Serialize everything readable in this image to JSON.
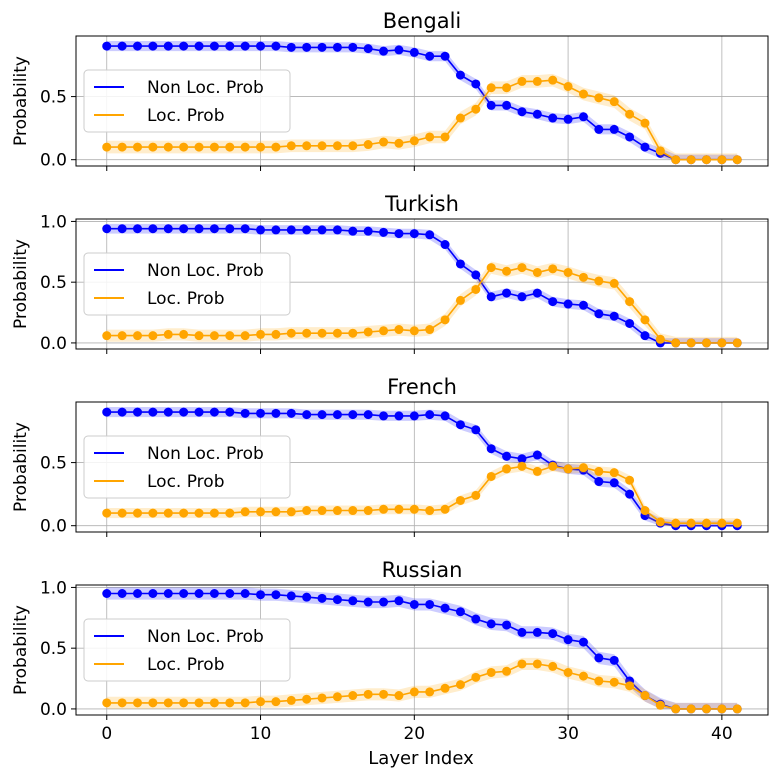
{
  "figure": {
    "xlabel": "Layer Index",
    "legend_labels": [
      "Non Loc. Prob",
      "Loc. Prob"
    ],
    "series_colors": {
      "non_loc": "#0000ff",
      "loc": "#ffa500"
    },
    "grid": true,
    "legend_position": "center-left"
  },
  "chart_data": [
    {
      "type": "line",
      "title": "Bengali",
      "ylabel": "Probability",
      "xlim": [
        -2,
        43
      ],
      "ylim": [
        -0.05,
        0.98
      ],
      "xticks": [
        0,
        10,
        20,
        30,
        40
      ],
      "yticks": [
        0.0,
        0.5
      ],
      "ytick_labels": [
        "0.0",
        "0.5"
      ],
      "show_xtick_labels": false,
      "x": [
        0,
        1,
        2,
        3,
        4,
        5,
        6,
        7,
        8,
        9,
        10,
        11,
        12,
        13,
        14,
        15,
        16,
        17,
        18,
        19,
        20,
        21,
        22,
        23,
        24,
        25,
        26,
        27,
        28,
        29,
        30,
        31,
        32,
        33,
        34,
        35,
        36,
        37,
        38,
        39,
        40,
        41
      ],
      "series": [
        {
          "name": "Non Loc. Prob",
          "color": "#0000ff",
          "values": [
            0.9,
            0.9,
            0.9,
            0.9,
            0.9,
            0.9,
            0.9,
            0.9,
            0.9,
            0.9,
            0.9,
            0.9,
            0.89,
            0.89,
            0.89,
            0.89,
            0.89,
            0.88,
            0.86,
            0.87,
            0.85,
            0.82,
            0.82,
            0.67,
            0.6,
            0.43,
            0.43,
            0.38,
            0.36,
            0.33,
            0.32,
            0.34,
            0.24,
            0.24,
            0.18,
            0.1,
            0.05,
            0.0,
            0.0,
            0.0,
            0.0,
            0.0
          ],
          "band": 0.04
        },
        {
          "name": "Loc. Prob",
          "color": "#ffa500",
          "values": [
            0.1,
            0.1,
            0.1,
            0.1,
            0.1,
            0.1,
            0.1,
            0.1,
            0.1,
            0.1,
            0.1,
            0.1,
            0.11,
            0.11,
            0.11,
            0.11,
            0.11,
            0.12,
            0.14,
            0.13,
            0.15,
            0.18,
            0.18,
            0.33,
            0.4,
            0.57,
            0.57,
            0.62,
            0.62,
            0.63,
            0.58,
            0.52,
            0.49,
            0.46,
            0.36,
            0.29,
            0.07,
            0.0,
            0.0,
            0.0,
            0.0,
            0.0
          ],
          "band": 0.05
        }
      ]
    },
    {
      "type": "line",
      "title": "Turkish",
      "ylabel": "Probability",
      "xlim": [
        -2,
        43
      ],
      "ylim": [
        -0.05,
        1.02
      ],
      "xticks": [
        0,
        10,
        20,
        30,
        40
      ],
      "yticks": [
        0.0,
        0.5,
        1.0
      ],
      "ytick_labels": [
        "0.0",
        "0.5",
        "1.0"
      ],
      "show_xtick_labels": false,
      "x": [
        0,
        1,
        2,
        3,
        4,
        5,
        6,
        7,
        8,
        9,
        10,
        11,
        12,
        13,
        14,
        15,
        16,
        17,
        18,
        19,
        20,
        21,
        22,
        23,
        24,
        25,
        26,
        27,
        28,
        29,
        30,
        31,
        32,
        33,
        34,
        35,
        36,
        37,
        38,
        39,
        40,
        41
      ],
      "series": [
        {
          "name": "Non Loc. Prob",
          "color": "#0000ff",
          "values": [
            0.94,
            0.94,
            0.94,
            0.94,
            0.94,
            0.94,
            0.94,
            0.94,
            0.94,
            0.94,
            0.93,
            0.93,
            0.93,
            0.93,
            0.93,
            0.93,
            0.92,
            0.92,
            0.91,
            0.9,
            0.9,
            0.89,
            0.81,
            0.65,
            0.56,
            0.38,
            0.41,
            0.38,
            0.41,
            0.34,
            0.32,
            0.31,
            0.24,
            0.22,
            0.16,
            0.06,
            0.0,
            0.0,
            0.0,
            0.0,
            0.0,
            0.0
          ],
          "band": 0.04
        },
        {
          "name": "Loc. Prob",
          "color": "#ffa500",
          "values": [
            0.06,
            0.06,
            0.06,
            0.06,
            0.07,
            0.07,
            0.06,
            0.06,
            0.06,
            0.06,
            0.07,
            0.07,
            0.08,
            0.08,
            0.08,
            0.08,
            0.08,
            0.09,
            0.1,
            0.11,
            0.1,
            0.11,
            0.19,
            0.35,
            0.44,
            0.62,
            0.59,
            0.62,
            0.58,
            0.61,
            0.58,
            0.54,
            0.51,
            0.49,
            0.34,
            0.19,
            0.03,
            0.0,
            0.0,
            0.0,
            0.0,
            0.0
          ],
          "band": 0.05
        }
      ]
    },
    {
      "type": "line",
      "title": "French",
      "ylabel": "Probability",
      "xlim": [
        -2,
        43
      ],
      "ylim": [
        -0.05,
        0.98
      ],
      "xticks": [
        0,
        10,
        20,
        30,
        40
      ],
      "yticks": [
        0.0,
        0.5
      ],
      "ytick_labels": [
        "0.0",
        "0.5"
      ],
      "show_xtick_labels": false,
      "x": [
        0,
        1,
        2,
        3,
        4,
        5,
        6,
        7,
        8,
        9,
        10,
        11,
        12,
        13,
        14,
        15,
        16,
        17,
        18,
        19,
        20,
        21,
        22,
        23,
        24,
        25,
        26,
        27,
        28,
        29,
        30,
        31,
        32,
        33,
        34,
        35,
        36,
        37,
        38,
        39,
        40,
        41
      ],
      "series": [
        {
          "name": "Non Loc. Prob",
          "color": "#0000ff",
          "values": [
            0.9,
            0.9,
            0.9,
            0.9,
            0.9,
            0.9,
            0.9,
            0.9,
            0.9,
            0.89,
            0.89,
            0.89,
            0.89,
            0.88,
            0.88,
            0.88,
            0.88,
            0.88,
            0.87,
            0.87,
            0.87,
            0.88,
            0.87,
            0.8,
            0.76,
            0.61,
            0.55,
            0.53,
            0.56,
            0.48,
            0.45,
            0.44,
            0.35,
            0.34,
            0.25,
            0.08,
            0.02,
            0.0,
            0.0,
            0.0,
            0.0,
            0.0
          ],
          "band": 0.04
        },
        {
          "name": "Loc. Prob",
          "color": "#ffa500",
          "values": [
            0.1,
            0.1,
            0.1,
            0.1,
            0.1,
            0.1,
            0.1,
            0.1,
            0.1,
            0.11,
            0.11,
            0.11,
            0.11,
            0.12,
            0.12,
            0.12,
            0.12,
            0.12,
            0.13,
            0.13,
            0.13,
            0.12,
            0.13,
            0.2,
            0.24,
            0.39,
            0.45,
            0.47,
            0.43,
            0.47,
            0.45,
            0.46,
            0.43,
            0.42,
            0.36,
            0.12,
            0.03,
            0.02,
            0.02,
            0.02,
            0.02,
            0.02
          ],
          "band": 0.04
        }
      ]
    },
    {
      "type": "line",
      "title": "Russian",
      "ylabel": "Probability",
      "xlim": [
        -2,
        43
      ],
      "ylim": [
        -0.05,
        1.02
      ],
      "xticks": [
        0,
        10,
        20,
        30,
        40
      ],
      "yticks": [
        0.0,
        0.5,
        1.0
      ],
      "ytick_labels": [
        "0.0",
        "0.5",
        "1.0"
      ],
      "show_xtick_labels": true,
      "x": [
        0,
        1,
        2,
        3,
        4,
        5,
        6,
        7,
        8,
        9,
        10,
        11,
        12,
        13,
        14,
        15,
        16,
        17,
        18,
        19,
        20,
        21,
        22,
        23,
        24,
        25,
        26,
        27,
        28,
        29,
        30,
        31,
        32,
        33,
        34,
        35,
        36,
        37,
        38,
        39,
        40,
        41
      ],
      "series": [
        {
          "name": "Non Loc. Prob",
          "color": "#0000ff",
          "values": [
            0.95,
            0.95,
            0.95,
            0.95,
            0.95,
            0.95,
            0.95,
            0.95,
            0.95,
            0.95,
            0.94,
            0.94,
            0.93,
            0.92,
            0.91,
            0.9,
            0.89,
            0.88,
            0.88,
            0.89,
            0.86,
            0.86,
            0.83,
            0.8,
            0.74,
            0.7,
            0.69,
            0.63,
            0.63,
            0.62,
            0.57,
            0.55,
            0.42,
            0.4,
            0.23,
            0.11,
            0.04,
            0.0,
            0.0,
            0.0,
            0.0,
            0.0
          ],
          "band": 0.05
        },
        {
          "name": "Loc. Prob",
          "color": "#ffa500",
          "values": [
            0.05,
            0.05,
            0.05,
            0.05,
            0.05,
            0.05,
            0.05,
            0.05,
            0.05,
            0.05,
            0.06,
            0.06,
            0.07,
            0.08,
            0.09,
            0.1,
            0.11,
            0.12,
            0.12,
            0.11,
            0.14,
            0.14,
            0.17,
            0.2,
            0.26,
            0.3,
            0.31,
            0.37,
            0.37,
            0.35,
            0.3,
            0.27,
            0.23,
            0.22,
            0.19,
            0.11,
            0.03,
            0.0,
            0.0,
            0.0,
            0.0,
            0.0
          ],
          "band": 0.05
        }
      ]
    }
  ]
}
